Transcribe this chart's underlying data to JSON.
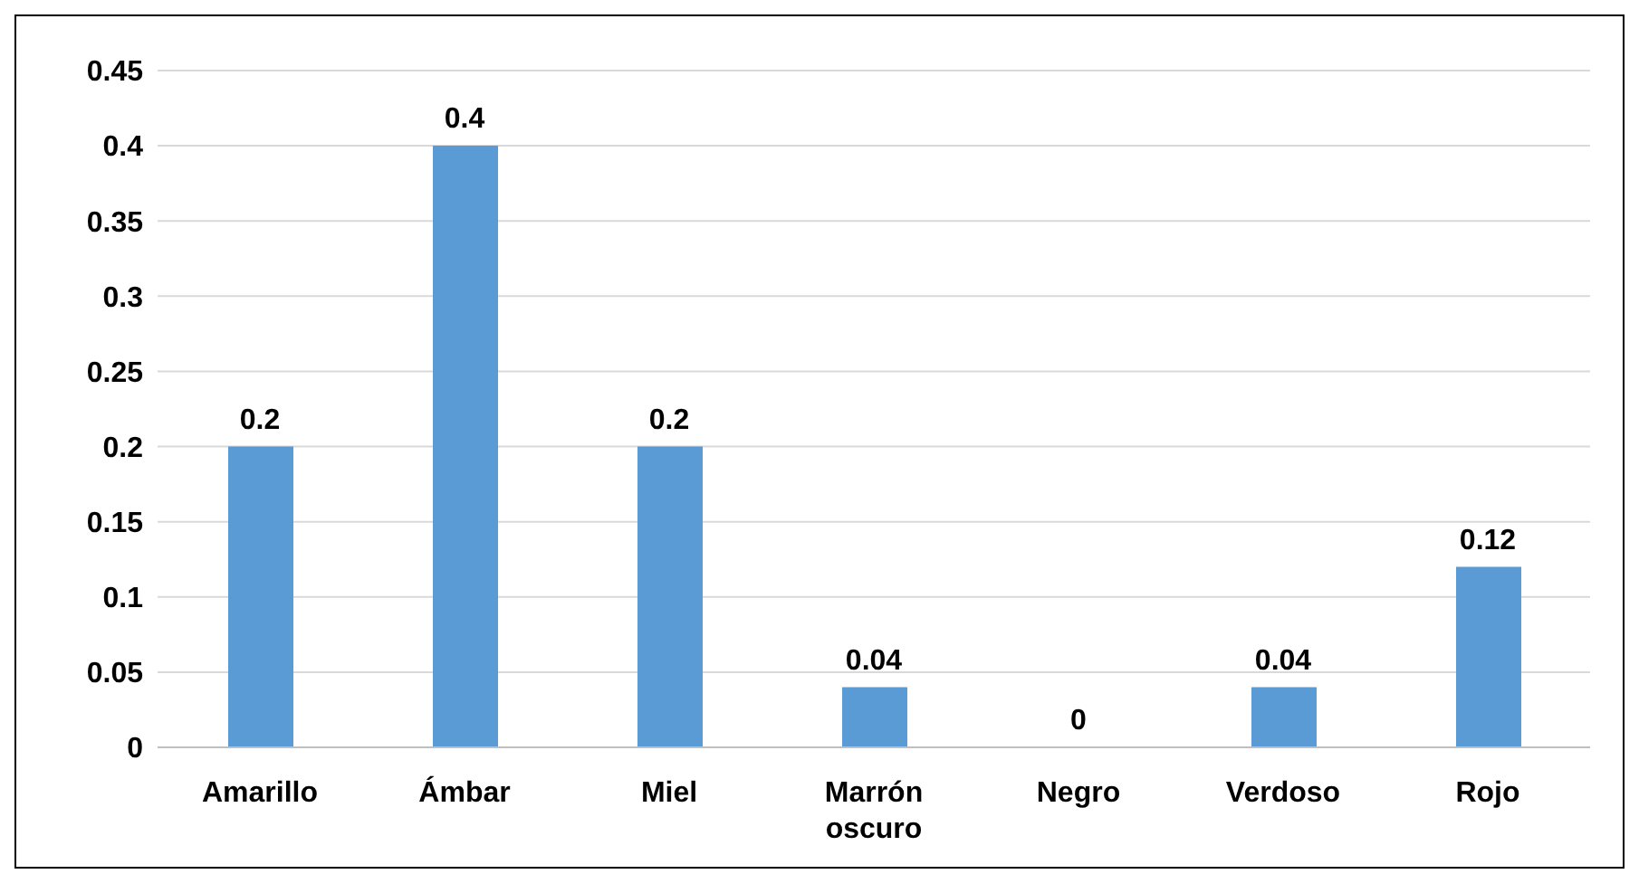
{
  "chart_data": {
    "type": "bar",
    "categories": [
      "Amarillo",
      "Ámbar",
      "Miel",
      "Marrón oscuro",
      "Negro",
      "Verdoso",
      "Rojo"
    ],
    "values": [
      0.2,
      0.4,
      0.2,
      0.04,
      0,
      0.04,
      0.12
    ],
    "color": "#5b9bd5",
    "ylim": [
      0,
      0.45
    ],
    "yticks": [
      0,
      0.05,
      0.1,
      0.15,
      0.2,
      0.25,
      0.3,
      0.35,
      0.4,
      0.45
    ],
    "grid": "y",
    "data_labels": true
  }
}
